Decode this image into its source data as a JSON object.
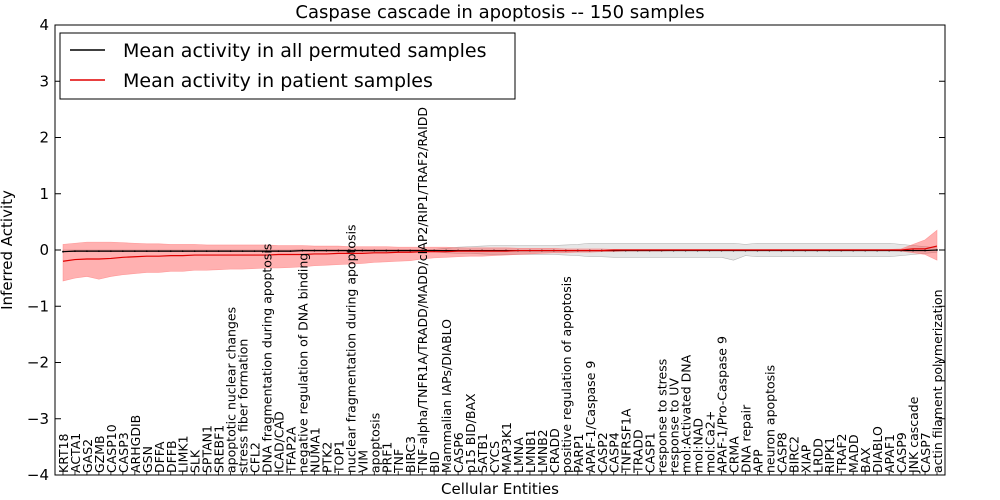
{
  "chart_data": {
    "type": "line",
    "title": "Caspase cascade in apoptosis -- 150 samples",
    "xlabel": "Cellular Entities",
    "ylabel": "Inferred Activity",
    "ylim": [
      -4,
      4
    ],
    "yticks": [
      -4,
      -3,
      -2,
      -1,
      0,
      1,
      2,
      3,
      4
    ],
    "legend_position": "top-left",
    "categories": [
      "KRT18",
      "ACTA1",
      "GAS2",
      "GZMB",
      "CASP10",
      "CASP3",
      "ARHGDIB",
      "GSN",
      "DFFA",
      "DFFB",
      "LIMK1",
      "SLK",
      "SPTAN1",
      "SREBF1",
      "apoptotic nuclear changes",
      "stress fiber formation",
      "CFL2",
      "DNA fragmentation during apoptosis",
      "ICAD/CAD",
      "TFAP2A",
      "negative regulation of DNA binding",
      "NUMA1",
      "PTK2",
      "TOP1",
      "nuclear fragmentation during apoptosis",
      "VIM",
      "apoptosis",
      "PRF1",
      "TNF",
      "BIRC3",
      "TNF-alpha/TNFR1A/TRADD/MADD/cIAP2/RIP1/TRAF2/RAIDD",
      "BID",
      "Mammalian IAPs/DIABLO",
      "CASP6",
      "p15 BID/BAX",
      "SATB1",
      "CYCS",
      "MAP3K1",
      "LMNA",
      "LMNB1",
      "LMNB2",
      "CRADD",
      "positive regulation of apoptosis",
      "PARP1",
      "APAF-1/Caspase 9",
      "CASP2",
      "CASP4",
      "TNFRSF1A",
      "TRADD",
      "CASP1",
      "response to stress",
      "response to UV",
      "mol:Activated DNA",
      "mol:NAD",
      "mol:Ca2+",
      "APAF-1/Pro-Caspase 9",
      "CRMA",
      "DNA repair",
      "APP",
      "neuron apoptosis",
      "CASP8",
      "BIRC2",
      "XIAP",
      "LRDD",
      "RIPK1",
      "TRAF2",
      "MADD",
      "BAX",
      "DIABLO",
      "APAF1",
      "CASP9",
      "JNK cascade",
      "CASP7",
      "actin filament polymerization"
    ],
    "series": [
      {
        "name": "Mean activity in all permuted samples",
        "color": "#000000",
        "values": [
          -0.03,
          -0.02,
          -0.02,
          -0.02,
          -0.02,
          -0.02,
          -0.02,
          -0.02,
          -0.02,
          -0.02,
          -0.02,
          -0.02,
          -0.02,
          -0.02,
          -0.02,
          -0.02,
          -0.02,
          -0.02,
          -0.02,
          -0.02,
          -0.01,
          -0.01,
          -0.01,
          -0.01,
          -0.01,
          -0.01,
          -0.01,
          -0.01,
          -0.01,
          -0.01,
          -0.01,
          -0.01,
          -0.01,
          -0.01,
          -0.01,
          -0.01,
          -0.01,
          -0.01,
          -0.01,
          -0.01,
          -0.01,
          -0.01,
          -0.01,
          -0.01,
          -0.01,
          -0.01,
          -0.01,
          -0.01,
          -0.01,
          -0.01,
          -0.01,
          -0.01,
          -0.01,
          -0.01,
          -0.01,
          -0.01,
          -0.01,
          -0.01,
          -0.01,
          -0.01,
          -0.01,
          -0.01,
          -0.01,
          -0.01,
          -0.01,
          -0.01,
          -0.01,
          -0.01,
          -0.01,
          -0.01,
          -0.01,
          -0.01,
          -0.01,
          0.0
        ],
        "band_lower": [
          -0.03,
          -0.03,
          -0.03,
          -0.03,
          -0.03,
          -0.03,
          -0.03,
          -0.03,
          -0.03,
          -0.03,
          -0.03,
          -0.03,
          -0.03,
          -0.03,
          -0.03,
          -0.03,
          -0.03,
          -0.03,
          -0.03,
          -0.03,
          -0.03,
          -0.03,
          -0.03,
          -0.03,
          -0.03,
          -0.03,
          -0.03,
          -0.03,
          -0.03,
          -0.03,
          -0.03,
          -0.03,
          -0.05,
          -0.06,
          -0.06,
          -0.07,
          -0.08,
          -0.08,
          -0.08,
          -0.08,
          -0.08,
          -0.08,
          -0.09,
          -0.1,
          -0.12,
          -0.12,
          -0.13,
          -0.13,
          -0.13,
          -0.13,
          -0.13,
          -0.13,
          -0.13,
          -0.13,
          -0.13,
          -0.13,
          -0.18,
          -0.1,
          -0.12,
          -0.12,
          -0.12,
          -0.12,
          -0.12,
          -0.12,
          -0.12,
          -0.12,
          -0.12,
          -0.12,
          -0.12,
          -0.12,
          -0.1,
          -0.08,
          -0.06,
          -0.04
        ],
        "band_upper": [
          0.0,
          0.0,
          0.0,
          0.0,
          0.0,
          0.0,
          0.0,
          0.0,
          0.0,
          0.0,
          0.0,
          0.0,
          0.0,
          0.0,
          0.0,
          0.0,
          0.0,
          0.0,
          0.0,
          0.0,
          0.01,
          0.01,
          0.01,
          0.01,
          0.01,
          0.01,
          0.01,
          0.01,
          0.01,
          0.01,
          0.01,
          0.01,
          0.03,
          0.05,
          0.06,
          0.07,
          0.08,
          0.08,
          0.08,
          0.08,
          0.08,
          0.08,
          0.09,
          0.1,
          0.12,
          0.12,
          0.12,
          0.12,
          0.12,
          0.12,
          0.12,
          0.12,
          0.12,
          0.12,
          0.12,
          0.12,
          0.12,
          0.1,
          0.12,
          0.12,
          0.12,
          0.12,
          0.12,
          0.12,
          0.12,
          0.12,
          0.12,
          0.12,
          0.12,
          0.12,
          0.1,
          0.08,
          0.06,
          0.04
        ]
      },
      {
        "name": "Mean activity in patient samples",
        "color": "#e00000",
        "values": [
          -0.2,
          -0.17,
          -0.16,
          -0.16,
          -0.15,
          -0.13,
          -0.12,
          -0.11,
          -0.11,
          -0.1,
          -0.1,
          -0.09,
          -0.09,
          -0.09,
          -0.09,
          -0.09,
          -0.09,
          -0.09,
          -0.08,
          -0.08,
          -0.08,
          -0.07,
          -0.07,
          -0.06,
          -0.06,
          -0.06,
          -0.05,
          -0.05,
          -0.04,
          -0.04,
          -0.03,
          -0.03,
          -0.03,
          -0.02,
          -0.02,
          -0.02,
          -0.02,
          -0.02,
          -0.01,
          -0.01,
          -0.01,
          -0.01,
          -0.01,
          -0.01,
          -0.01,
          -0.01,
          0.0,
          0.0,
          0.0,
          0.0,
          0.0,
          0.0,
          0.0,
          0.0,
          0.0,
          0.0,
          0.0,
          0.0,
          0.0,
          0.0,
          0.0,
          0.0,
          0.0,
          0.0,
          0.0,
          0.0,
          0.0,
          0.0,
          0.0,
          0.0,
          0.0,
          0.02,
          0.02,
          0.07
        ],
        "band_lower": [
          -0.55,
          -0.5,
          -0.47,
          -0.52,
          -0.47,
          -0.44,
          -0.42,
          -0.4,
          -0.4,
          -0.38,
          -0.38,
          -0.36,
          -0.36,
          -0.35,
          -0.34,
          -0.34,
          -0.33,
          -0.32,
          -0.32,
          -0.31,
          -0.3,
          -0.28,
          -0.27,
          -0.26,
          -0.25,
          -0.24,
          -0.22,
          -0.21,
          -0.2,
          -0.19,
          -0.16,
          -0.14,
          -0.13,
          -0.12,
          -0.11,
          -0.11,
          -0.1,
          -0.09,
          -0.08,
          -0.07,
          -0.06,
          -0.05,
          -0.05,
          -0.04,
          -0.04,
          -0.03,
          -0.03,
          -0.02,
          -0.02,
          -0.02,
          -0.02,
          -0.01,
          -0.01,
          -0.01,
          -0.01,
          -0.01,
          -0.01,
          -0.01,
          -0.01,
          -0.01,
          -0.01,
          -0.01,
          -0.01,
          -0.01,
          -0.01,
          -0.01,
          -0.01,
          -0.01,
          -0.01,
          -0.01,
          -0.02,
          -0.05,
          -0.08,
          -0.18
        ],
        "band_upper": [
          0.1,
          0.12,
          0.14,
          0.14,
          0.14,
          0.13,
          0.12,
          0.11,
          0.11,
          0.1,
          0.1,
          0.1,
          0.09,
          0.09,
          0.09,
          0.09,
          0.09,
          0.09,
          0.08,
          0.08,
          0.08,
          0.07,
          0.07,
          0.07,
          0.06,
          0.06,
          0.06,
          0.06,
          0.05,
          0.05,
          0.05,
          0.05,
          0.05,
          0.04,
          0.04,
          0.04,
          0.04,
          0.04,
          0.03,
          0.03,
          0.03,
          0.03,
          0.02,
          0.02,
          0.02,
          0.02,
          0.01,
          0.01,
          0.01,
          0.01,
          0.01,
          0.01,
          0.01,
          0.01,
          0.01,
          0.01,
          0.01,
          0.01,
          0.01,
          0.01,
          0.01,
          0.01,
          0.01,
          0.01,
          0.01,
          0.01,
          0.01,
          0.01,
          0.01,
          0.01,
          0.02,
          0.1,
          0.18,
          0.35
        ]
      }
    ]
  }
}
